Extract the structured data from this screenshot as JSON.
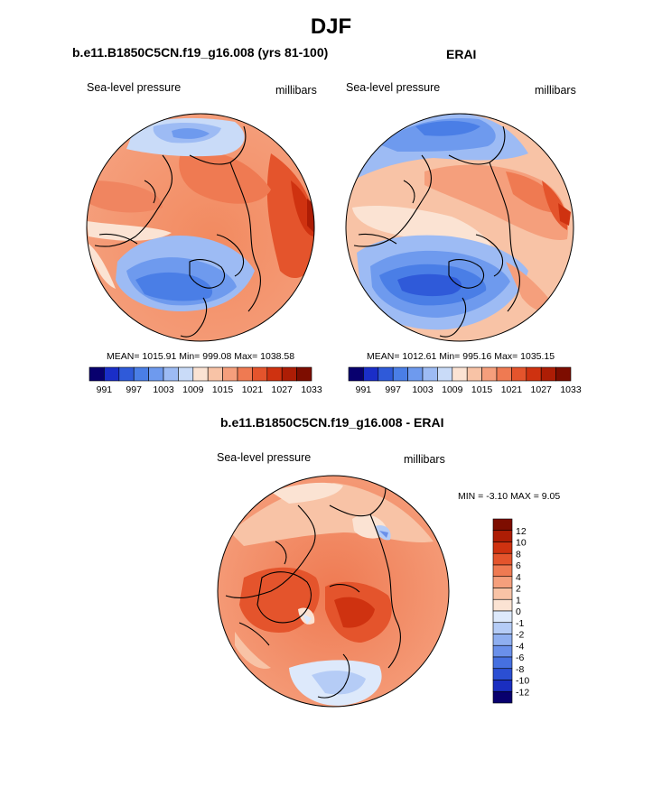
{
  "page_title": "DJF",
  "panels": {
    "model": {
      "title": "b.e11.B1850C5CN.f19_g16.008 (yrs 81-100)",
      "left_label": "Sea-level pressure",
      "right_label": "millibars",
      "stats": "MEAN= 1015.91  Min= 999.08  Max= 1038.58"
    },
    "obs": {
      "title": "ERAI",
      "left_label": "Sea-level pressure",
      "right_label": "millibars",
      "stats": "MEAN= 1012.61  Min= 995.16  Max= 1035.15"
    },
    "diff": {
      "title": "b.e11.B1850C5CN.f19_g16.008 - ERAI",
      "left_label": "Sea-level pressure",
      "right_label": "millibars",
      "stats": "MIN =  -3.10 MAX =   9.05"
    }
  },
  "horizontal_colorbar": {
    "tick_labels": [
      "991",
      "997",
      "1003",
      "1009",
      "1015",
      "1021",
      "1027",
      "1033"
    ],
    "colors": [
      "#08006e",
      "#1a2ec8",
      "#2f5ad9",
      "#4a7ee6",
      "#6e9aee",
      "#9dbbf4",
      "#c9dbf8",
      "#fbe3d3",
      "#f8c3a6",
      "#f59f7c",
      "#ef7a52",
      "#e4542c",
      "#cf3210",
      "#ad1d05",
      "#7d0d00"
    ]
  },
  "vertical_colorbar": {
    "tick_labels": [
      "12",
      "10",
      "8",
      "6",
      "4",
      "2",
      "1",
      "0",
      "-1",
      "-2",
      "-4",
      "-6",
      "-8",
      "-10",
      "-12"
    ],
    "colors": [
      "#7d0d00",
      "#ad1d05",
      "#cf3210",
      "#e4542c",
      "#ef7a52",
      "#f59f7c",
      "#f8c3a6",
      "#fbe3d3",
      "#dde9fb",
      "#b5ccf6",
      "#8faff0",
      "#6a90ea",
      "#4670e0",
      "#2b4fd3",
      "#1a2ec0",
      "#08006e"
    ]
  }
}
